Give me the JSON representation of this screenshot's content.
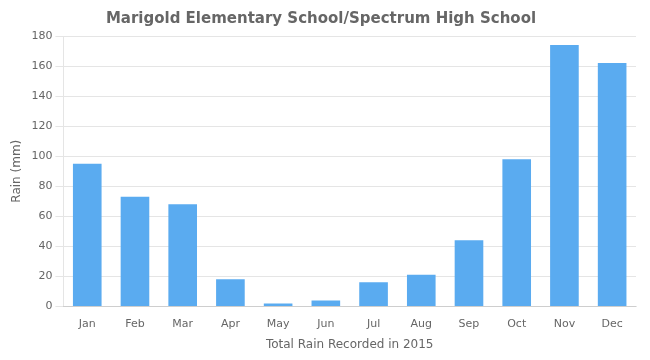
{
  "chart_data": {
    "type": "bar",
    "title": "Marigold Elementary School/Spectrum High School",
    "xlabel": "Total Rain Recorded in 2015",
    "ylabel": "Rain (mm)",
    "categories": [
      "Jan",
      "Feb",
      "Mar",
      "Apr",
      "May",
      "Jun",
      "Jul",
      "Aug",
      "Sep",
      "Oct",
      "Nov",
      "Dec"
    ],
    "values": [
      95,
      73,
      68,
      18,
      2,
      4,
      16,
      21,
      44,
      98,
      174,
      162
    ],
    "color": "#5aabf0",
    "ylim": [
      0,
      180
    ],
    "yticks": [
      0,
      20,
      40,
      60,
      80,
      100,
      120,
      140,
      160,
      180
    ],
    "grid": true
  }
}
